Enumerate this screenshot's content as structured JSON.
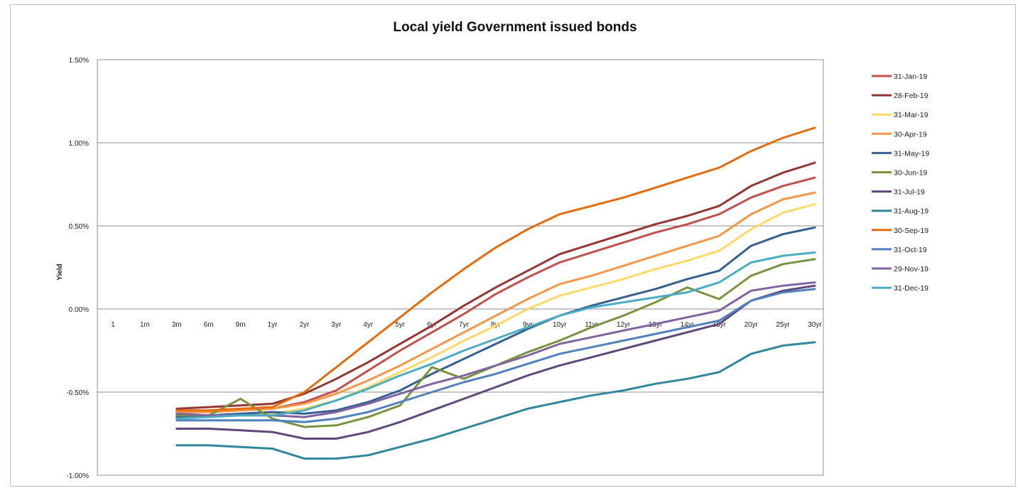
{
  "chart_data": {
    "type": "line",
    "title": "Local yield Government issued bonds",
    "xlabel": "",
    "ylabel": "Yield",
    "ylim": [
      -0.01,
      0.015
    ],
    "y_ticks": [
      {
        "value": 0.015,
        "label": "1.50%"
      },
      {
        "value": 0.01,
        "label": "1.00%"
      },
      {
        "value": 0.005,
        "label": "0.50%"
      },
      {
        "value": 0.0,
        "label": "0.00%"
      },
      {
        "value": -0.005,
        "label": "-0.50%"
      },
      {
        "value": -0.01,
        "label": "-1.00%"
      }
    ],
    "grid": "horizontal",
    "legend_position": "right",
    "categories": [
      "1",
      "1m",
      "3m",
      "6m",
      "9m",
      "1yr",
      "2yr",
      "3yr",
      "4yr",
      "5yr",
      "6yr",
      "7yr",
      "8yr",
      "9yr",
      "10yr",
      "11yr",
      "12yr",
      "13yr",
      "14yr",
      "15yr",
      "20yr",
      "25yr",
      "30yr"
    ],
    "series": [
      {
        "name": "31-Jan-19",
        "color": "#C0504D",
        "values": [
          null,
          null,
          -0.0062,
          -0.0062,
          -0.0061,
          -0.006,
          -0.0056,
          -0.0049,
          -0.0037,
          -0.0025,
          -0.0014,
          -0.0003,
          0.0009,
          0.0019,
          0.0028,
          0.0034,
          0.004,
          0.0046,
          0.0051,
          0.0057,
          0.0067,
          0.0074,
          0.0079
        ]
      },
      {
        "name": "28-Feb-19",
        "color": "#943634",
        "values": [
          null,
          null,
          -0.006,
          -0.0059,
          -0.0058,
          -0.0057,
          -0.0051,
          -0.0042,
          -0.0032,
          -0.0021,
          -0.001,
          0.0002,
          0.0013,
          0.0023,
          0.0033,
          0.0039,
          0.0045,
          0.0051,
          0.0056,
          0.0062,
          0.0074,
          0.0082,
          0.0088
        ]
      },
      {
        "name": "31-Mar-19",
        "color": "#FFD966",
        "values": [
          null,
          null,
          -0.0064,
          -0.0064,
          -0.0063,
          -0.0063,
          -0.006,
          -0.0055,
          -0.0047,
          -0.0038,
          -0.0029,
          -0.0019,
          -0.001,
          0.0,
          0.0008,
          0.0013,
          0.0018,
          0.0024,
          0.0029,
          0.0035,
          0.0048,
          0.0058,
          0.0063
        ]
      },
      {
        "name": "30-Apr-19",
        "color": "#F79646",
        "values": [
          null,
          null,
          -0.0062,
          -0.0062,
          -0.0061,
          -0.006,
          -0.0057,
          -0.0051,
          -0.0043,
          -0.0034,
          -0.0024,
          -0.0014,
          -0.0004,
          0.0006,
          0.0015,
          0.002,
          0.0026,
          0.0032,
          0.0038,
          0.0044,
          0.0057,
          0.0066,
          0.007
        ]
      },
      {
        "name": "31-May-19",
        "color": "#366092",
        "values": [
          null,
          null,
          -0.0065,
          -0.0064,
          -0.0063,
          -0.0062,
          -0.0063,
          -0.0061,
          -0.0056,
          -0.0049,
          -0.0039,
          -0.003,
          -0.0021,
          -0.0012,
          -0.0004,
          0.0002,
          0.0007,
          0.0012,
          0.0018,
          0.0023,
          0.0038,
          0.0045,
          0.0049
        ]
      },
      {
        "name": "30-Jun-19",
        "color": "#77933C",
        "values": [
          null,
          null,
          -0.0064,
          -0.0064,
          -0.0054,
          -0.0066,
          -0.0071,
          -0.007,
          -0.0065,
          -0.0058,
          -0.0035,
          -0.0042,
          -0.0034,
          -0.0026,
          -0.0019,
          -0.0011,
          -0.0004,
          0.0004,
          0.0013,
          0.0006,
          0.002,
          0.0027,
          0.003
        ]
      },
      {
        "name": "31-Jul-19",
        "color": "#5F497A",
        "values": [
          null,
          null,
          -0.0072,
          -0.0072,
          -0.0073,
          -0.0074,
          -0.0078,
          -0.0078,
          -0.0074,
          -0.0068,
          -0.0061,
          -0.0054,
          -0.0047,
          -0.004,
          -0.0034,
          -0.0029,
          -0.0024,
          -0.0019,
          -0.0014,
          -0.0009,
          0.0005,
          0.0011,
          0.0014
        ]
      },
      {
        "name": "31-Aug-19",
        "color": "#31859C",
        "values": [
          null,
          null,
          -0.0082,
          -0.0082,
          -0.0083,
          -0.0084,
          -0.009,
          -0.009,
          -0.0088,
          -0.0083,
          -0.0078,
          -0.0072,
          -0.0066,
          -0.006,
          -0.0056,
          -0.0052,
          -0.0049,
          -0.0045,
          -0.0042,
          -0.0038,
          -0.0027,
          -0.0022,
          -0.002
        ]
      },
      {
        "name": "30-Sep-19",
        "color": "#E46C0A",
        "values": [
          null,
          null,
          -0.0061,
          -0.0061,
          -0.006,
          -0.0059,
          -0.005,
          -0.0035,
          -0.002,
          -0.0005,
          0.001,
          0.0024,
          0.0037,
          0.0048,
          0.0057,
          0.0062,
          0.0067,
          0.0073,
          0.0079,
          0.0085,
          0.0095,
          0.0103,
          0.0109
        ]
      },
      {
        "name": "31-Oct-19",
        "color": "#4F81BD",
        "values": [
          null,
          null,
          -0.0067,
          -0.0067,
          -0.0067,
          -0.0067,
          -0.0068,
          -0.0066,
          -0.0062,
          -0.0056,
          -0.005,
          -0.0044,
          -0.0039,
          -0.0033,
          -0.0027,
          -0.0023,
          -0.0019,
          -0.0015,
          -0.0011,
          -0.0007,
          0.0005,
          0.001,
          0.0012
        ]
      },
      {
        "name": "29-Nov-19",
        "color": "#8064A2",
        "values": [
          null,
          null,
          -0.0063,
          -0.0064,
          -0.0064,
          -0.0064,
          -0.0065,
          -0.0062,
          -0.0057,
          -0.0051,
          -0.0045,
          -0.004,
          -0.0034,
          -0.0028,
          -0.0021,
          -0.0017,
          -0.0013,
          -0.0009,
          -0.0005,
          -0.0001,
          0.0011,
          0.0014,
          0.0016
        ]
      },
      {
        "name": "31-Dec-19",
        "color": "#4BACC6",
        "values": [
          null,
          null,
          -0.0066,
          -0.0065,
          -0.0064,
          -0.0064,
          -0.0061,
          -0.0055,
          -0.0048,
          -0.004,
          -0.0033,
          -0.0025,
          -0.0018,
          -0.0011,
          -0.0004,
          0.0001,
          0.0004,
          0.0007,
          0.001,
          0.0016,
          0.0028,
          0.0032,
          0.0034
        ]
      }
    ]
  }
}
